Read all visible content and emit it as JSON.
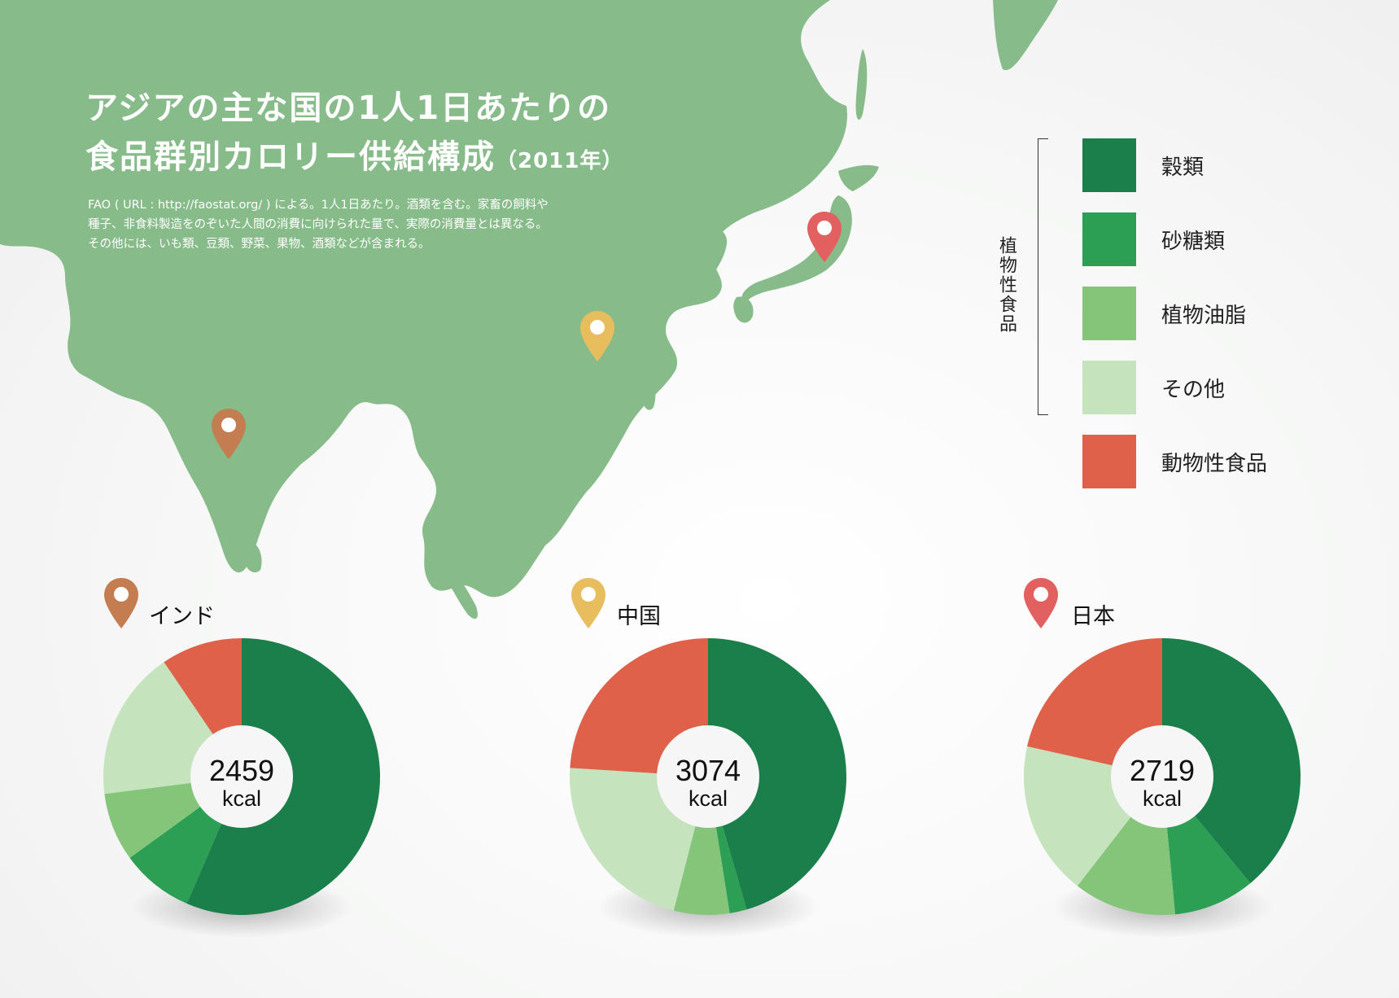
{
  "title": {
    "line1": "アジアの主な国の1人1日あたりの",
    "line2": "食品群別カロリー供給構成",
    "year": "（2011年）"
  },
  "notes": [
    "FAO ( URL : http://faostat.org/ ) による。1人1日あたり。酒類を含む。家畜の飼料や",
    "種子、非食料製造をのぞいた人間の消費に向けられた量で、実際の消費量とは異なる。",
    "その他には、いも類、豆類、野菜、果物、酒類などが含まれる。"
  ],
  "legend": {
    "group_label": "植物性食品",
    "items": [
      {
        "label": "穀類",
        "color": "#1a7f4a"
      },
      {
        "label": "砂糖類",
        "color": "#2c9f55"
      },
      {
        "label": "植物油脂",
        "color": "#85c57a"
      },
      {
        "label": "その他",
        "color": "#c5e3bd"
      },
      {
        "label": "動物性食品",
        "color": "#e0614a"
      }
    ]
  },
  "map_color": "#88bb8a",
  "chart_data": [
    {
      "type": "pie",
      "country": "インド",
      "pin_color": "#c47d50",
      "total_value": "2459",
      "unit": "kcal",
      "categories": [
        "穀類",
        "砂糖類",
        "植物油脂",
        "その他",
        "動物性食品"
      ],
      "values": [
        56.5,
        8.5,
        8.0,
        17.5,
        9.5
      ]
    },
    {
      "type": "pie",
      "country": "中国",
      "pin_color": "#e8bd5e",
      "total_value": "3074",
      "unit": "kcal",
      "categories": [
        "穀類",
        "砂糖類",
        "植物油脂",
        "その他",
        "動物性食品"
      ],
      "values": [
        45.5,
        2.0,
        6.5,
        22.0,
        24.0
      ]
    },
    {
      "type": "pie",
      "country": "日本",
      "pin_color": "#e26060",
      "total_value": "2719",
      "unit": "kcal",
      "categories": [
        "穀類",
        "砂糖類",
        "植物油脂",
        "その他",
        "動物性食品"
      ],
      "values": [
        39.0,
        9.5,
        12.0,
        18.0,
        21.5
      ]
    }
  ]
}
